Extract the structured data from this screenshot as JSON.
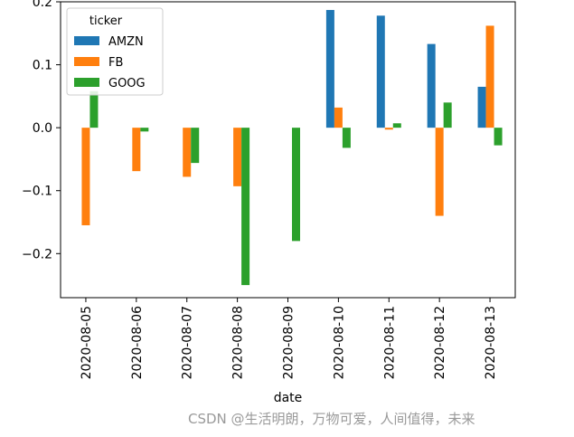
{
  "chart_data": {
    "type": "bar",
    "xlabel": "date",
    "ylabel": "",
    "title": "",
    "categories": [
      "2020-08-05",
      "2020-08-06",
      "2020-08-07",
      "2020-08-08",
      "2020-08-09",
      "2020-08-10",
      "2020-08-11",
      "2020-08-12",
      "2020-08-13"
    ],
    "ylim": [
      -0.27,
      0.2
    ],
    "yticks": [
      -0.2,
      -0.1,
      0.0,
      0.1,
      0.2
    ],
    "ytick_labels": [
      "−0.2",
      "−0.1",
      "0.0",
      "0.1",
      "0.2"
    ],
    "grid": false,
    "legend": {
      "title": "ticker",
      "placement": "top-left"
    },
    "series": [
      {
        "name": "AMZN",
        "color": "#1f77b4",
        "values": [
          null,
          null,
          null,
          null,
          null,
          0.187,
          0.178,
          0.133,
          0.065
        ]
      },
      {
        "name": "FB",
        "color": "#ff7f0e",
        "values": [
          -0.155,
          -0.069,
          -0.078,
          -0.093,
          null,
          0.032,
          -0.003,
          -0.14,
          0.162
        ]
      },
      {
        "name": "GOOG",
        "color": "#2ca02c",
        "values": [
          0.058,
          -0.006,
          -0.056,
          -0.25,
          -0.18,
          -0.032,
          0.007,
          0.04,
          -0.028
        ]
      }
    ]
  },
  "watermark": "CSDN @生活明朗，万物可爱，人间值得，未来"
}
